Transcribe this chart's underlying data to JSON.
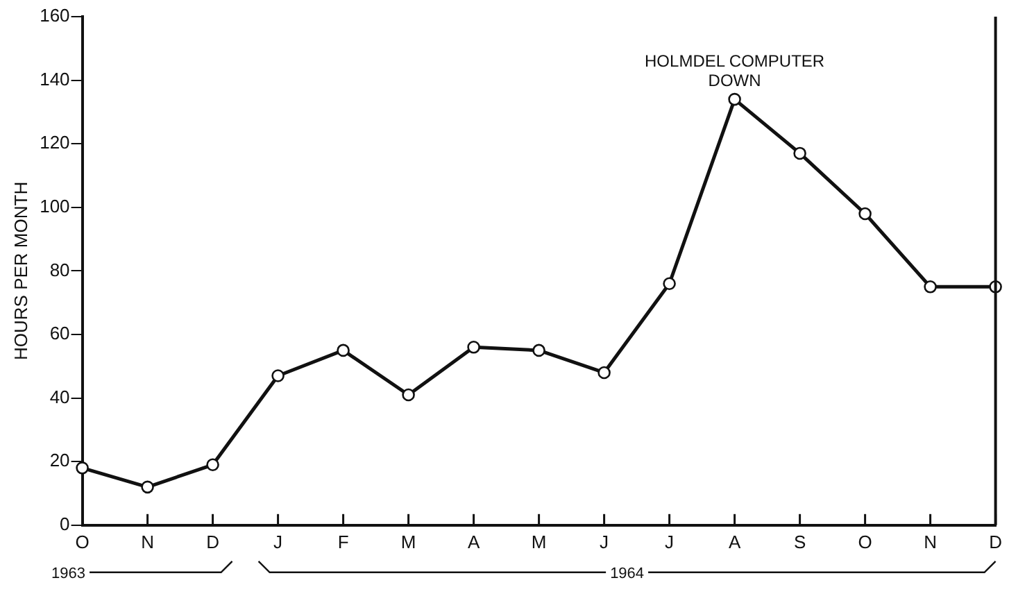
{
  "chart_data": {
    "type": "line",
    "ylabel": "HOURS PER MONTH",
    "categories": [
      "O",
      "N",
      "D",
      "J",
      "F",
      "M",
      "A",
      "M",
      "J",
      "J",
      "A",
      "S",
      "O",
      "N",
      "D"
    ],
    "series": [
      {
        "color": "#111111",
        "values": [
          18,
          12,
          19,
          47,
          55,
          41,
          56,
          55,
          48,
          76,
          134,
          117,
          98,
          75,
          75
        ]
      }
    ],
    "ylim": [
      0,
      160
    ],
    "yticks": [
      0,
      20,
      40,
      60,
      80,
      100,
      120,
      140,
      160
    ],
    "grid": false,
    "legend": false,
    "marker": "circle",
    "line_style": "solid",
    "annotations": [
      "HOLMDEL COMPUTER DOWN",
      "1963",
      "1964"
    ]
  }
}
